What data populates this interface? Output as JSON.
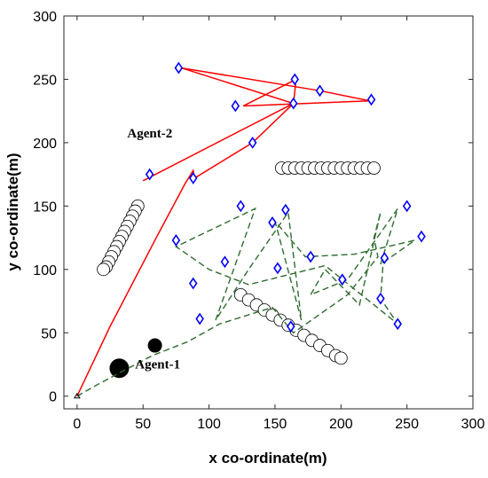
{
  "chart_data": {
    "type": "scatter",
    "title": "",
    "xlabel": "x co-ordinate(m)",
    "ylabel": "y co-ordinate(m)",
    "xlim": [
      -10,
      300
    ],
    "ylim": [
      -10,
      300
    ],
    "xticks": [
      0,
      50,
      100,
      150,
      200,
      250,
      300
    ],
    "yticks": [
      0,
      50,
      100,
      150,
      200,
      250,
      300
    ],
    "grid": false,
    "colors": {
      "agent1_path": "#2e6b2e",
      "agent2_path": "#ff0000",
      "waypoint": "#0000ff",
      "obstacle_fill": "#000000",
      "obstacle_outline": "#000000"
    },
    "annotations": [
      {
        "text": "Agent-2",
        "x": 38,
        "y": 204
      },
      {
        "text": "Agent-1",
        "x": 44,
        "y": 22
      }
    ],
    "series": [
      {
        "name": "agent-1-path",
        "style": "dashed",
        "points": [
          [
            0,
            0
          ],
          [
            17,
            10
          ],
          [
            57,
            32
          ],
          [
            84,
            43
          ],
          [
            108,
            57
          ],
          [
            148,
            70
          ],
          [
            164,
            50
          ],
          [
            205,
            80
          ],
          [
            228,
            110
          ],
          [
            225,
            125
          ],
          [
            230,
            145
          ],
          [
            214,
            72
          ],
          [
            188,
            100
          ],
          [
            177,
            80
          ],
          [
            205,
            92
          ],
          [
            243,
            148
          ],
          [
            230,
            104
          ],
          [
            256,
            123
          ],
          [
            210,
            112
          ],
          [
            173,
            110
          ],
          [
            150,
            138
          ],
          [
            170,
            60
          ],
          [
            160,
            145
          ],
          [
            130,
            100
          ],
          [
            105,
            60
          ],
          [
            135,
            148
          ],
          [
            75,
            118
          ],
          [
            100,
            100
          ],
          [
            130,
            88
          ],
          [
            188,
            103
          ],
          [
            243,
            57
          ],
          [
            230,
            77
          ],
          [
            232,
            106
          ]
        ]
      },
      {
        "name": "agent-2-path",
        "style": "solid",
        "points": [
          [
            0,
            0
          ],
          [
            25,
            55
          ],
          [
            60,
            125
          ],
          [
            82,
            168
          ],
          [
            88,
            178
          ],
          [
            89,
            172
          ],
          [
            133,
            200
          ],
          [
            164,
            231
          ],
          [
            166,
            250
          ],
          [
            126,
            229
          ],
          [
            222,
            233
          ],
          [
            184,
            241
          ],
          [
            79,
            259
          ],
          [
            164,
            231
          ],
          [
            50,
            170
          ]
        ]
      },
      {
        "name": "waypoints",
        "marker": "diamond",
        "points": [
          [
            77,
            259
          ],
          [
            165,
            250
          ],
          [
            184,
            241
          ],
          [
            120,
            229
          ],
          [
            223,
            234
          ],
          [
            164,
            231
          ],
          [
            133,
            200
          ],
          [
            55,
            175
          ],
          [
            88,
            172
          ],
          [
            124,
            150
          ],
          [
            158,
            147
          ],
          [
            250,
            150
          ],
          [
            148,
            137
          ],
          [
            75,
            123
          ],
          [
            261,
            126
          ],
          [
            177,
            110
          ],
          [
            112,
            106
          ],
          [
            152,
            101
          ],
          [
            233,
            109
          ],
          [
            88,
            89
          ],
          [
            201,
            92
          ],
          [
            230,
            77
          ],
          [
            93,
            61
          ],
          [
            162,
            55
          ],
          [
            243,
            57
          ]
        ]
      },
      {
        "name": "obstacle-band-1",
        "marker": "circle-open",
        "points": [
          [
            46,
            150
          ],
          [
            44,
            146
          ],
          [
            42,
            142
          ],
          [
            40,
            138
          ],
          [
            38,
            134
          ],
          [
            36,
            130
          ],
          [
            34,
            126
          ],
          [
            32,
            122
          ],
          [
            30,
            118
          ],
          [
            28,
            114
          ],
          [
            26,
            110
          ],
          [
            24,
            106
          ],
          [
            22,
            102
          ],
          [
            20,
            100
          ]
        ]
      },
      {
        "name": "obstacle-band-2",
        "marker": "circle-open",
        "points": [
          [
            155,
            180
          ],
          [
            160,
            180
          ],
          [
            165,
            180
          ],
          [
            170,
            180
          ],
          [
            175,
            180
          ],
          [
            180,
            180
          ],
          [
            185,
            180
          ],
          [
            190,
            180
          ],
          [
            195,
            180
          ],
          [
            200,
            180
          ],
          [
            205,
            180
          ],
          [
            210,
            180
          ],
          [
            215,
            180
          ],
          [
            220,
            180
          ],
          [
            225,
            180
          ]
        ]
      },
      {
        "name": "obstacle-band-3",
        "marker": "circle-open",
        "points": [
          [
            124,
            80
          ],
          [
            130,
            76
          ],
          [
            136,
            72
          ],
          [
            142,
            68
          ],
          [
            148,
            64
          ],
          [
            154,
            60
          ],
          [
            160,
            56
          ],
          [
            166,
            52
          ],
          [
            172,
            48
          ],
          [
            178,
            44
          ],
          [
            184,
            40
          ],
          [
            190,
            36
          ],
          [
            196,
            32
          ],
          [
            200,
            30
          ]
        ]
      },
      {
        "name": "obstacles-solid",
        "marker": "circle-filled",
        "points": [
          [
            32,
            22
          ],
          [
            59,
            40
          ]
        ]
      }
    ]
  }
}
